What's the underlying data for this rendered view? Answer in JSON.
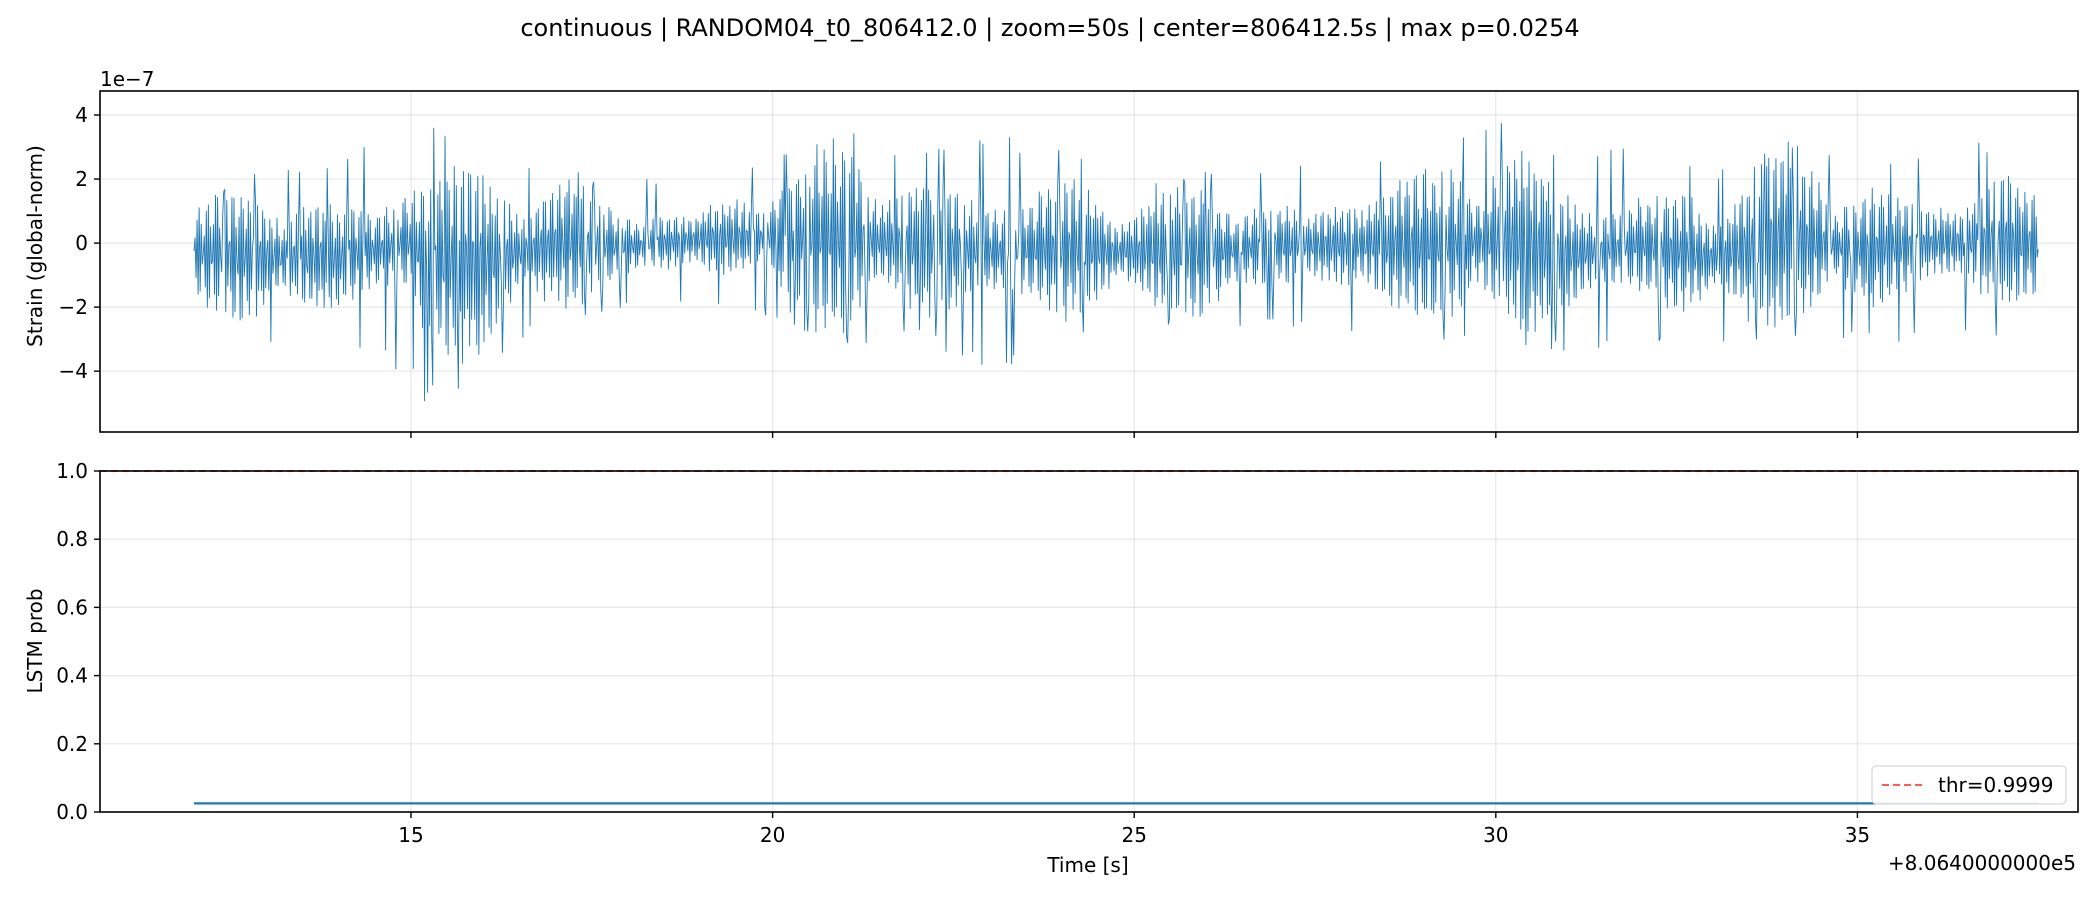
{
  "chart_data": [
    {
      "type": "line",
      "title": "continuous | RANDOM04_t0_806412.0 | zoom=50s | center=806412.5s | max p=0.0254",
      "xlabel": "",
      "ylabel": "Strain (global-norm)",
      "y_scale_label": "1e−7",
      "y_scale_factor": 1e-07,
      "xlim": [
        10.7,
        38.05
      ],
      "ylim": [
        -5.9,
        4.75
      ],
      "x_ticks": [
        15,
        20,
        25,
        30,
        35
      ],
      "y_ticks": [
        -4,
        -2,
        0,
        2,
        4
      ],
      "y_tick_labels": [
        "−4",
        "−2",
        "0",
        "2",
        "4"
      ],
      "grid": true,
      "line_color": "#1f77b4",
      "series": [
        {
          "x_start": 12.0,
          "x_end": 37.5,
          "envelope_x": [
            12.0,
            13.0,
            14.0,
            15.0,
            15.2,
            16.0,
            17.0,
            18.0,
            19.0,
            20.0,
            21.0,
            22.0,
            23.0,
            24.0,
            25.0,
            26.0,
            27.0,
            28.0,
            29.0,
            30.0,
            31.0,
            32.0,
            33.0,
            34.0,
            35.0,
            36.0,
            37.0,
            37.5
          ],
          "envelope_max": [
            1.4,
            2.5,
            2.4,
            4.3,
            4.2,
            2.8,
            2.4,
            1.9,
            2.3,
            2.7,
            3.7,
            2.8,
            3.5,
            3.0,
            1.8,
            2.4,
            2.6,
            3.0,
            2.6,
            3.9,
            2.9,
            3.4,
            2.2,
            3.4,
            2.8,
            3.0,
            3.3,
            1.9
          ],
          "envelope_min": [
            -1.9,
            -3.4,
            -3.3,
            -4.2,
            -5.4,
            -3.9,
            -2.4,
            -2.1,
            -2.0,
            -2.3,
            -3.3,
            -3.0,
            -4.0,
            -3.4,
            -2.3,
            -3.0,
            -2.7,
            -3.1,
            -2.8,
            -3.7,
            -3.6,
            -3.5,
            -3.1,
            -3.0,
            -3.2,
            -3.0,
            -3.2,
            -2.0
          ]
        }
      ]
    },
    {
      "type": "line",
      "title": "",
      "xlabel": "Time [s]",
      "ylabel": "LSTM prob",
      "x_offset_label": "+8.0640000000e5",
      "xlim": [
        10.7,
        38.05
      ],
      "ylim": [
        0.0,
        1.0
      ],
      "x_ticks": [
        15,
        20,
        25,
        30,
        35
      ],
      "x_tick_labels": [
        "15",
        "20",
        "25",
        "30",
        "35"
      ],
      "y_ticks": [
        0.0,
        0.2,
        0.4,
        0.6,
        0.8,
        1.0
      ],
      "y_tick_labels": [
        "0.0",
        "0.2",
        "0.4",
        "0.6",
        "0.8",
        "1.0"
      ],
      "grid": true,
      "series": [
        {
          "x": [
            12.0,
            37.5
          ],
          "values": [
            0.0254,
            0.0254
          ],
          "color": "#1f77b4"
        },
        {
          "name": "thr=0.9999",
          "x": [
            10.7,
            38.05
          ],
          "values": [
            0.9999,
            0.9999
          ],
          "color": "#ff5a5a",
          "dashed": true
        }
      ],
      "legend_position": "lower-right"
    }
  ]
}
